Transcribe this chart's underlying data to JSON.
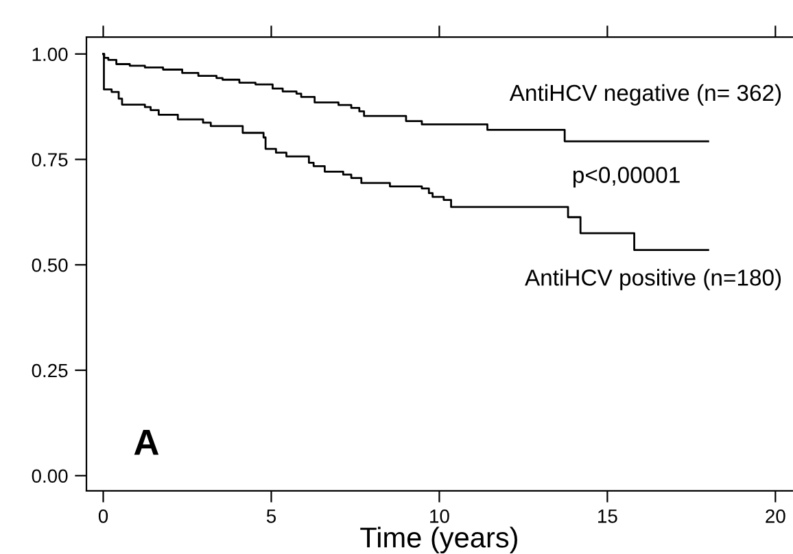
{
  "chart_data": {
    "type": "step",
    "xlabel": "Time (years)",
    "xlim": [
      -0.5,
      20.5
    ],
    "xticks": [
      0,
      5,
      10,
      15,
      20
    ],
    "ylim": [
      -0.036,
      1.04
    ],
    "yticks": [
      {
        "value": 0,
        "label": "0.00"
      },
      {
        "value": 0.25,
        "label": "0.25"
      },
      {
        "value": 0.5,
        "label": "0.50"
      },
      {
        "value": 0.75,
        "label": "0.75"
      },
      {
        "value": 1,
        "label": "1.00"
      }
    ],
    "grid": false,
    "legend": false,
    "series": [
      {
        "name": "AntiHCV negative (n= 362)",
        "color": "#000000",
        "x": [
          0,
          0.03,
          0.15,
          0.39,
          0.79,
          1.24,
          1.78,
          2.35,
          2.83,
          3.37,
          3.55,
          4.05,
          4.53,
          5.04,
          5.34,
          5.75,
          5.89,
          6.29,
          7.0,
          7.38,
          7.62,
          7.76,
          9.01,
          9.48,
          11.43,
          13.73,
          18
        ],
        "values": [
          1.0,
          0.991,
          0.986,
          0.976,
          0.972,
          0.968,
          0.963,
          0.955,
          0.948,
          0.943,
          0.939,
          0.932,
          0.928,
          0.918,
          0.911,
          0.906,
          0.898,
          0.885,
          0.879,
          0.872,
          0.864,
          0.853,
          0.841,
          0.833,
          0.82,
          0.793,
          0.793
        ]
      },
      {
        "name": "AntiHCV positive (n=180)",
        "color": "#000000",
        "x": [
          0,
          0.02,
          0.25,
          0.46,
          0.56,
          1.24,
          1.41,
          1.65,
          2.22,
          2.97,
          3.2,
          4.15,
          4.77,
          4.83,
          5.14,
          5.45,
          6.12,
          6.26,
          6.59,
          7.14,
          7.38,
          7.68,
          8.53,
          9.48,
          9.69,
          9.8,
          10.13,
          10.35,
          13.83,
          14.2,
          15.8,
          18
        ],
        "values": [
          1.0,
          0.916,
          0.91,
          0.894,
          0.88,
          0.874,
          0.867,
          0.856,
          0.845,
          0.837,
          0.829,
          0.813,
          0.802,
          0.775,
          0.766,
          0.757,
          0.742,
          0.734,
          0.721,
          0.714,
          0.706,
          0.694,
          0.686,
          0.681,
          0.67,
          0.661,
          0.654,
          0.637,
          0.613,
          0.575,
          0.535,
          0.535
        ]
      }
    ],
    "annotations": [
      "p<0,00001",
      "A"
    ]
  }
}
